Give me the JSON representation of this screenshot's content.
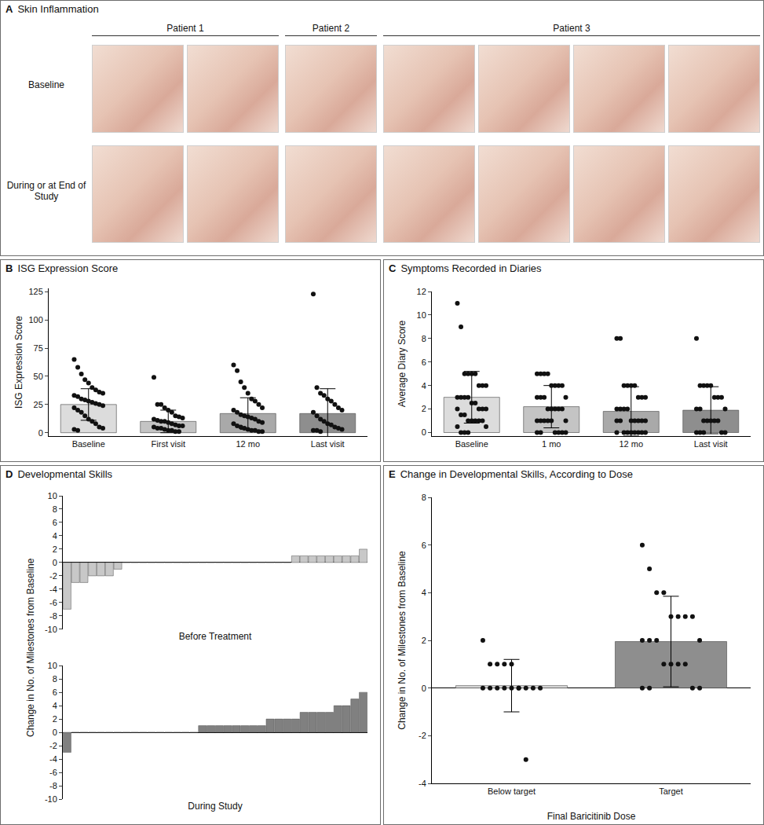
{
  "panel_a": {
    "panel": "A",
    "title": "Skin Inflammation",
    "patients": [
      "Patient 1",
      "Patient 2",
      "Patient 3"
    ],
    "rows": [
      "Baseline",
      "During or at End of Study"
    ]
  },
  "chart_data": [
    {
      "panel": "B",
      "type": "bar",
      "title": "ISG Expression Score",
      "y_label": "ISG Expression Score",
      "categories": [
        "Baseline",
        "First visit",
        "12 mo",
        "Last visit"
      ],
      "values": [
        25,
        10,
        17,
        17
      ],
      "error": [
        14,
        10,
        14,
        22
      ],
      "colors": [
        "#dcdcdc",
        "#c4c4c4",
        "#a9a9a9",
        "#8e8e8e"
      ],
      "points": [
        [
          65,
          58,
          52,
          47,
          44,
          40,
          38,
          36,
          35,
          33,
          32,
          30,
          29,
          28,
          27,
          26,
          25,
          24,
          22,
          20,
          18,
          15,
          12,
          10,
          8,
          5,
          4,
          3,
          2
        ],
        [
          49,
          25,
          25,
          22,
          20,
          18,
          15,
          14,
          13,
          12,
          11,
          10,
          10,
          9,
          8,
          7,
          6,
          6,
          5,
          4,
          4,
          3,
          2,
          2,
          1,
          1
        ],
        [
          60,
          55,
          45,
          40,
          35,
          30,
          28,
          25,
          22,
          20,
          18,
          16,
          15,
          14,
          13,
          12,
          10,
          9,
          8,
          6,
          5,
          4,
          3,
          2,
          2,
          1,
          1
        ],
        [
          123,
          40,
          35,
          33,
          30,
          28,
          25,
          22,
          20,
          18,
          15,
          12,
          10,
          8,
          7,
          5,
          4,
          3,
          2,
          2,
          1
        ]
      ],
      "ylim": [
        -3,
        128
      ],
      "yticks": [
        0,
        25,
        50,
        75,
        100,
        125
      ]
    },
    {
      "panel": "C",
      "type": "bar",
      "title": "Symptoms Recorded in Diaries",
      "y_label": "Average Diary Score",
      "categories": [
        "Baseline",
        "1 mo",
        "12 mo",
        "Last visit"
      ],
      "values": [
        3.0,
        2.2,
        1.8,
        1.9
      ],
      "error": [
        2.2,
        1.8,
        2.1,
        2.0
      ],
      "colors": [
        "#dcdcdc",
        "#c4c4c4",
        "#a9a9a9",
        "#8e8e8e"
      ],
      "points": [
        [
          11,
          9,
          5,
          5,
          5,
          5,
          4,
          4,
          4,
          3,
          3,
          3,
          3,
          2.5,
          2.5,
          2,
          2,
          2,
          2,
          1.5,
          1.5,
          1,
          1,
          1,
          1,
          1,
          0.5,
          0.5,
          0,
          0,
          0
        ],
        [
          5,
          5,
          5,
          5,
          4,
          4,
          4,
          4,
          3,
          3,
          3,
          3,
          2,
          2,
          2,
          2,
          2,
          1,
          1,
          1,
          1,
          1,
          1,
          0,
          0,
          0,
          0,
          0,
          0
        ],
        [
          8,
          8,
          4,
          4,
          4,
          4,
          3,
          3,
          3,
          2,
          2,
          2,
          2,
          1,
          1,
          1,
          1,
          1,
          1,
          1,
          0,
          0,
          0,
          0,
          0,
          0,
          0,
          0
        ],
        [
          8,
          4,
          4,
          4,
          4,
          3,
          3,
          3,
          2,
          2,
          2,
          1,
          1,
          1,
          1,
          1,
          0,
          0,
          0,
          0,
          0
        ]
      ],
      "ylim": [
        -0.3,
        12
      ],
      "yticks": [
        0,
        2,
        4,
        6,
        8,
        10,
        12
      ]
    },
    {
      "panel": "D",
      "type": "bar",
      "title": "Developmental Skills",
      "y_label": "Change in No. of Milestones from Baseline",
      "tick_labels": "y",
      "categories": [
        null,
        null,
        null,
        null,
        null,
        null,
        null,
        null,
        null,
        null,
        null,
        null,
        null,
        null,
        null,
        null,
        null,
        null,
        null,
        null,
        null,
        null,
        null,
        null,
        null,
        null,
        null,
        null,
        null,
        null,
        null,
        null,
        null,
        null,
        null,
        null
      ],
      "panels": [
        {
          "x_label": "Before Treatment",
          "color": "#c8c8c8",
          "values": [
            -7,
            -3,
            -3,
            -2,
            -2,
            -2,
            -1,
            0,
            0,
            0,
            0,
            0,
            0,
            0,
            0,
            0,
            0,
            0,
            0,
            0,
            0,
            0,
            0,
            0,
            0,
            0,
            0,
            1,
            1,
            1,
            1,
            1,
            1,
            1,
            1,
            2
          ]
        },
        {
          "x_label": "During Study",
          "color": "#808080",
          "values": [
            -3,
            0,
            0,
            0,
            0,
            0,
            0,
            0,
            0,
            0,
            0,
            0,
            0,
            0,
            0,
            0,
            1,
            1,
            1,
            1,
            1,
            1,
            1,
            1,
            2,
            2,
            2,
            2,
            3,
            3,
            3,
            3,
            4,
            4,
            5,
            6
          ]
        }
      ],
      "ylim": [
        -10,
        10
      ],
      "yticks": [
        -10,
        -8,
        -6,
        -4,
        -2,
        0,
        2,
        4,
        6,
        8,
        10
      ]
    },
    {
      "panel": "E",
      "type": "bar",
      "title": "Change in Developmental Skills, According to Dose",
      "x_label": "Final Baricitinib Dose",
      "y_label": "Change in No. of Milestones from Baseline",
      "categories": [
        "Below target",
        "Target"
      ],
      "values": [
        0.1,
        1.95
      ],
      "error": [
        1.1,
        1.9
      ],
      "colors": [
        "#dcdcdc",
        "#8e8e8e"
      ],
      "points": [
        [
          2,
          1,
          1,
          1,
          1,
          0,
          0,
          0,
          0,
          0,
          0,
          0,
          0,
          0,
          0,
          -3
        ],
        [
          6,
          5,
          4,
          4,
          3,
          3,
          3,
          3,
          2,
          2,
          2,
          2,
          1,
          1,
          1,
          1,
          0,
          0,
          0,
          0
        ]
      ],
      "ylim": [
        -4,
        8
      ],
      "yticks": [
        -4,
        -2,
        0,
        2,
        4,
        6,
        8
      ]
    }
  ]
}
